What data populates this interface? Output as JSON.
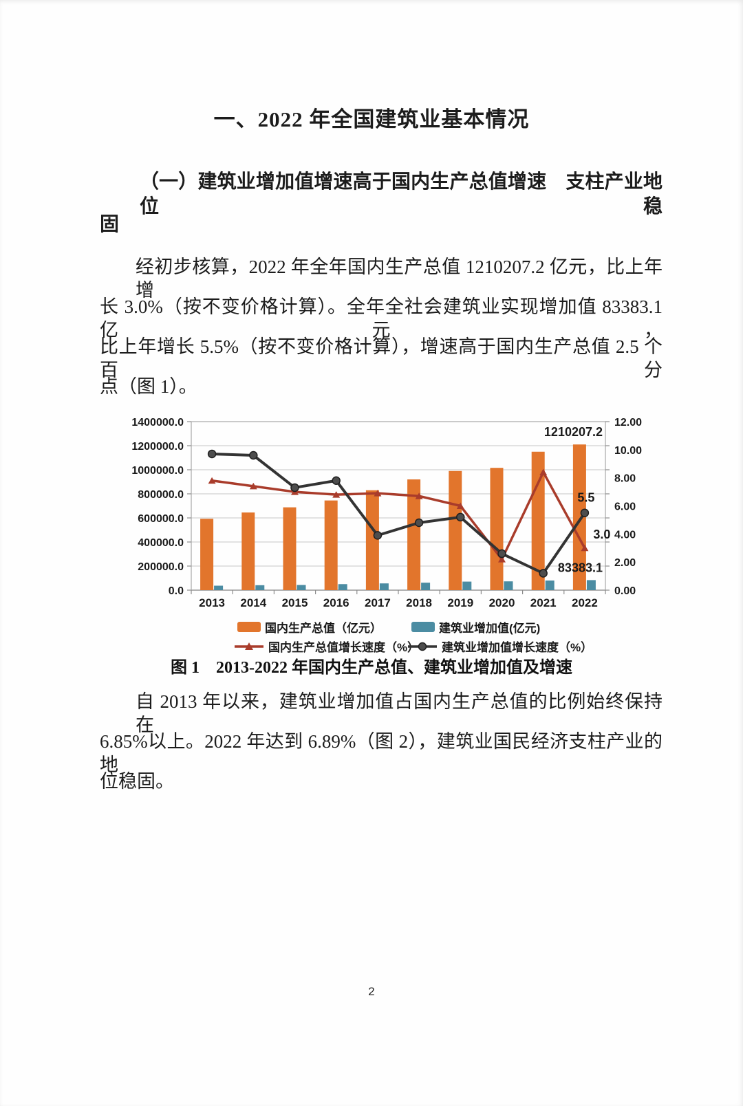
{
  "doc": {
    "title": "一、2022 年全国建筑业基本情况",
    "heading": {
      "line1": "（一）建筑业增加值增速高于国内生产总值增速　支柱产业地位稳",
      "line2": "固"
    },
    "para1": {
      "lines": [
        "经初步核算，2022 年全年国内生产总值 1210207.2 亿元，比上年增",
        "长 3.0%（按不变价格计算）。全年全社会建筑业实现增加值 83383.1 亿元，",
        "比上年增长 5.5%（按不变价格计算），增速高于国内生产总值 2.5 个百分",
        "点（图 1）。"
      ]
    },
    "figure_caption": "图 1　2013-2022 年国内生产总值、建筑业增加值及增速",
    "para2": {
      "lines": [
        "自 2013 年以来，建筑业增加值占国内生产总值的比例始终保持在",
        "6.85%以上。2022 年达到 6.89%（图 2），建筑业国民经济支柱产业的地",
        "位稳固。"
      ]
    },
    "page_number": "2"
  },
  "chart_data": {
    "type": "bar",
    "subtype": "combo-bar-line-dual-axis",
    "categories": [
      "2013",
      "2014",
      "2015",
      "2016",
      "2017",
      "2018",
      "2019",
      "2020",
      "2021",
      "2022"
    ],
    "series": [
      {
        "name": "国内生产总值（亿元）",
        "kind": "bar",
        "axis": "left",
        "color": "#E2752C",
        "values": [
          593000,
          645000,
          688000,
          745000,
          830000,
          920000,
          990000,
          1016000,
          1150000,
          1210207.2
        ]
      },
      {
        "name": "建筑业增加值(亿元)",
        "kind": "bar",
        "axis": "left",
        "color": "#4B8CA2",
        "values": [
          37000,
          41000,
          43000,
          50000,
          56000,
          62000,
          71000,
          73000,
          80000,
          83383.1
        ]
      },
      {
        "name": "国内生产总值增长速度（%）",
        "kind": "line",
        "axis": "right",
        "color": "#A93C2B",
        "marker": "triangle",
        "values": [
          7.8,
          7.4,
          7.0,
          6.8,
          6.9,
          6.7,
          6.0,
          2.2,
          8.4,
          3.0
        ]
      },
      {
        "name": "建筑业增加值增长速度（%）",
        "kind": "line",
        "axis": "right",
        "color": "#333333",
        "marker": "circle",
        "values": [
          9.7,
          9.6,
          7.3,
          7.8,
          3.9,
          4.8,
          5.2,
          2.6,
          1.2,
          5.5
        ]
      }
    ],
    "left_axis": {
      "min": 0,
      "max": 1400000,
      "step": 200000,
      "tick_format": "one_decimal"
    },
    "right_axis": {
      "min": 0,
      "max": 12,
      "step": 2,
      "tick_format": "two_decimal"
    },
    "point_labels": [
      {
        "series": 0,
        "index": 9,
        "text": "1210207.2"
      },
      {
        "series": 1,
        "index": 9,
        "text": "83383.1"
      },
      {
        "series": 2,
        "index": 9,
        "text": "3.0"
      },
      {
        "series": 3,
        "index": 9,
        "text": "5.5"
      }
    ],
    "grid": true,
    "legend_position": "bottom",
    "colors": {
      "grid": "#C6C6C6",
      "axis": "#8C8C8C",
      "plot_border": "#A8A8A8"
    }
  }
}
